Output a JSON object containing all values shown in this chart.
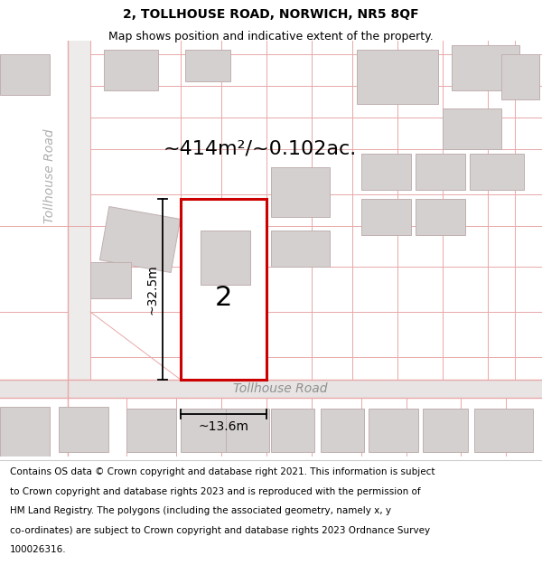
{
  "title_line1": "2, TOLLHOUSE ROAD, NORWICH, NR5 8QF",
  "title_line2": "Map shows position and indicative extent of the property.",
  "footer_lines": [
    "Contains OS data © Crown copyright and database right 2021. This information is subject",
    "to Crown copyright and database rights 2023 and is reproduced with the permission of",
    "HM Land Registry. The polygons (including the associated geometry, namely x, y",
    "co-ordinates) are subject to Crown copyright and database rights 2023 Ordnance Survey",
    "100026316."
  ],
  "map_bg": "#f5f3f3",
  "road_color": "#e8a8a8",
  "bld_fill": "#d5d0d0",
  "bld_edge": "#c0b0b0",
  "prop_color": "#cc0000",
  "road_label": "Tollhouse Road",
  "side_label": "Tollhouse Road",
  "area_label": "~414m²/~0.102ac.",
  "num_label": "2",
  "dim_w": "~13.6m",
  "dim_h": "~32.5m",
  "title_fs": 10,
  "subtitle_fs": 9,
  "footer_fs": 7.5,
  "area_fs": 16,
  "num_fs": 22,
  "dim_fs": 10,
  "road_label_fs": 10,
  "side_label_fs": 10
}
